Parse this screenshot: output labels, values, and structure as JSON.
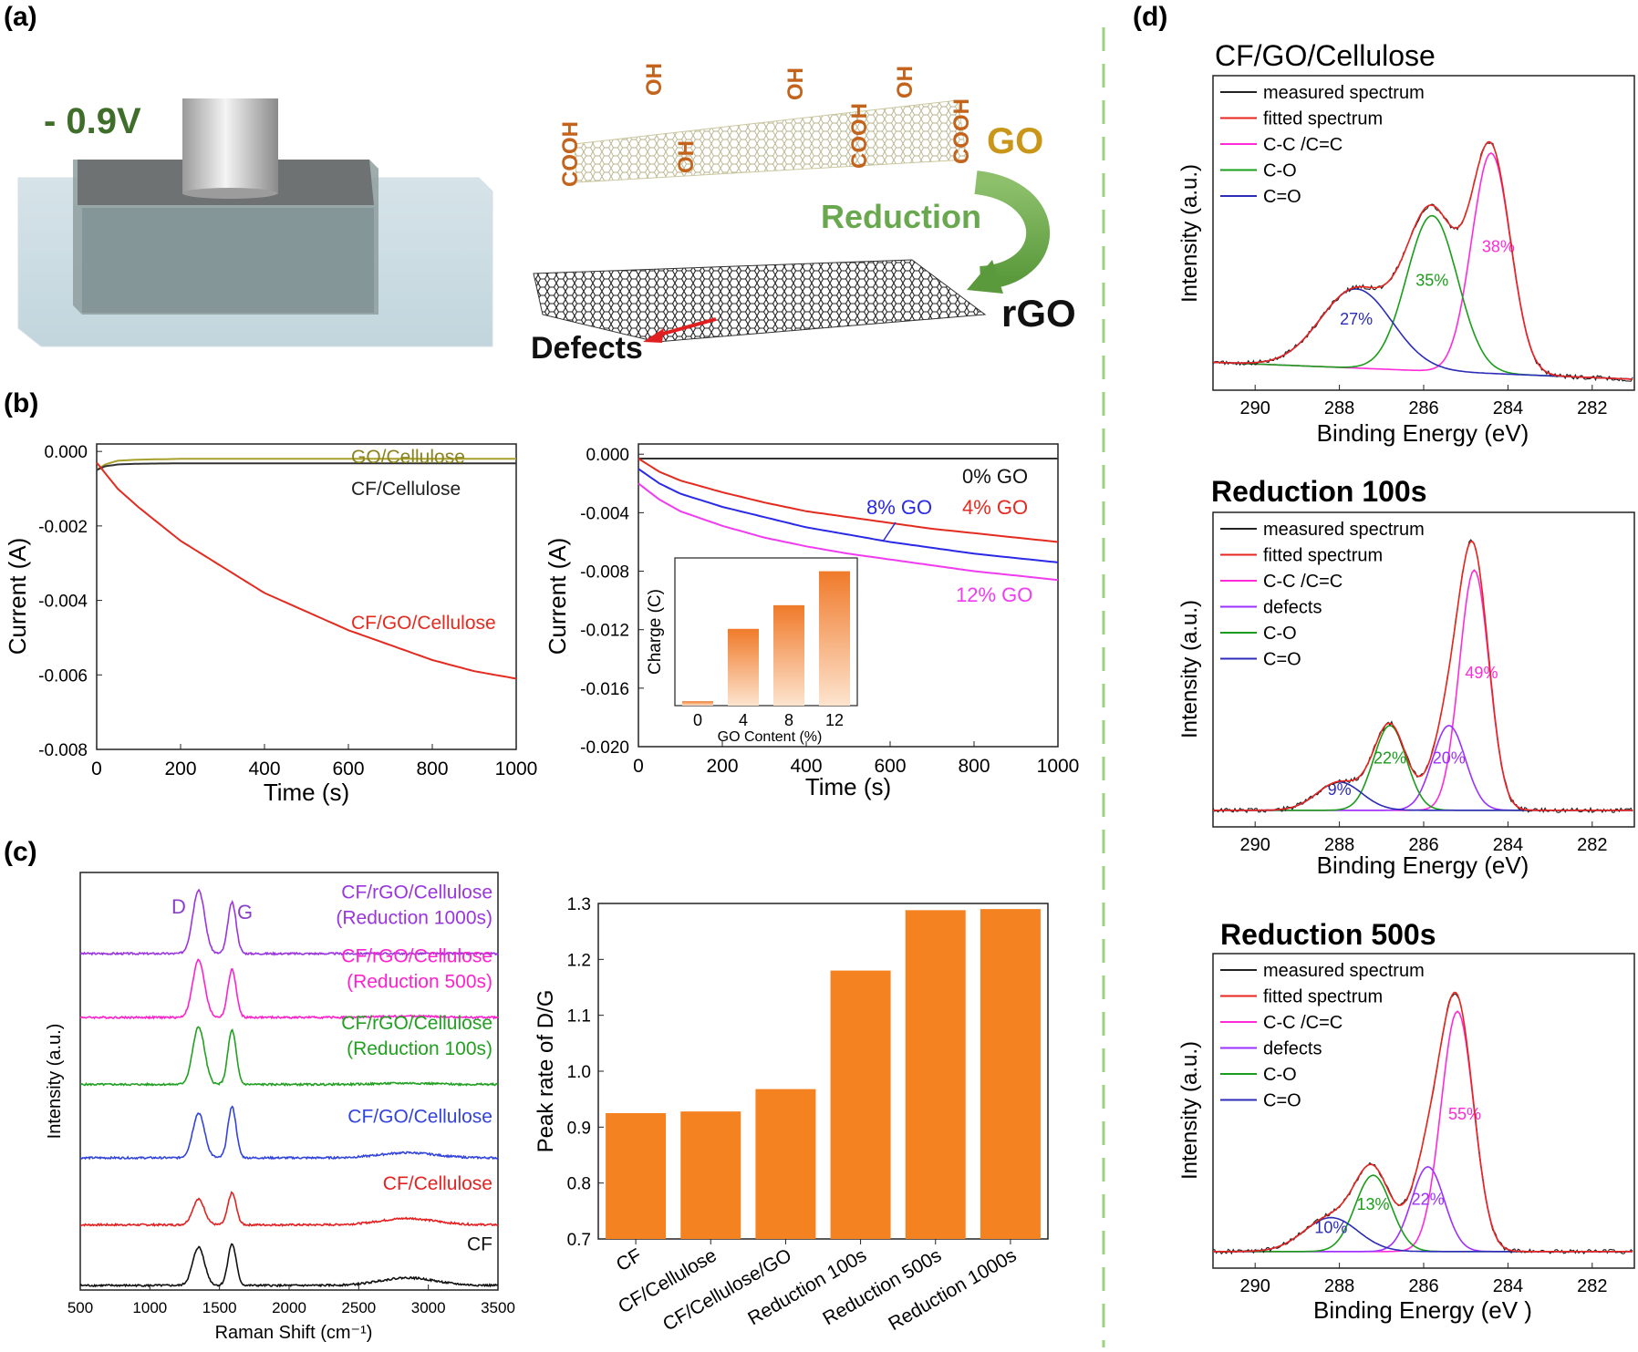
{
  "panels": {
    "a": "(a)",
    "b": "(b)",
    "c": "(c)",
    "d": "(d)"
  },
  "schematic": {
    "voltage": "- 0.9V",
    "groups": [
      "COOH",
      "OH",
      "OH",
      "OH",
      "COOH",
      "OH",
      "COOH"
    ],
    "go_label": "GO",
    "reduction_label": "Reduction",
    "rgo_label": "rGO",
    "defects_label": "Defects"
  },
  "colors": {
    "orange": "#f58220",
    "measured": "#222222",
    "fitted": "#e8251f",
    "cc": "#ff2bd8",
    "defects": "#9b30ff",
    "co": "#1a9d1a",
    "ceo": "#2c2cb8",
    "go_line": "#a7a02a",
    "black_line": "#333333",
    "red_line": "#e32b20",
    "blue_line": "#2a2ae6",
    "mag_line": "#f03cf0",
    "purple_spec": "#9a35e0",
    "mag_spec": "#ff22cc",
    "green_spec": "#22a022",
    "blue_spec": "#3344dd",
    "red_spec": "#e42222",
    "black_spec": "#111111",
    "schematic_green": "#6aa84f",
    "go_text": "#c9961a"
  },
  "chart_data": [
    {
      "id": "b1",
      "type": "line",
      "xlabel": "Time (s)",
      "ylabel": "Current (A)",
      "xlim": [
        0,
        1000
      ],
      "ylim": [
        -0.008,
        0.0002
      ],
      "xticks": [
        0,
        200,
        400,
        600,
        800,
        1000
      ],
      "yticks": [
        0.0,
        -0.002,
        -0.004,
        -0.006,
        -0.008
      ],
      "ytick_labels": [
        "0.000",
        "-0.002",
        "-0.004",
        "-0.006",
        "-0.008"
      ],
      "series": [
        {
          "name": "GO/Cellulose",
          "x": [
            0,
            20,
            50,
            100,
            200,
            400,
            600,
            800,
            1000
          ],
          "y": [
            -0.0005,
            -0.00035,
            -0.00025,
            -0.00022,
            -0.0002,
            -0.0002,
            -0.0002,
            -0.0002,
            -0.0002
          ]
        },
        {
          "name": "CF/Cellulose",
          "x": [
            0,
            20,
            50,
            100,
            200,
            400,
            600,
            800,
            1000
          ],
          "y": [
            -0.0005,
            -0.0004,
            -0.00035,
            -0.00033,
            -0.00032,
            -0.00032,
            -0.00032,
            -0.00032,
            -0.00032
          ]
        },
        {
          "name": "CF/GO/Cellulose",
          "x": [
            0,
            50,
            100,
            200,
            300,
            400,
            500,
            600,
            700,
            800,
            900,
            1000
          ],
          "y": [
            -0.0003,
            -0.001,
            -0.0015,
            -0.0024,
            -0.0031,
            -0.0038,
            -0.0043,
            -0.0048,
            -0.0052,
            -0.0056,
            -0.0059,
            -0.0061
          ]
        }
      ]
    },
    {
      "id": "b2",
      "type": "line",
      "xlabel": "Time (s)",
      "ylabel": "Current (A)",
      "xlim": [
        0,
        1000
      ],
      "ylim": [
        -0.02,
        0.0007
      ],
      "xticks": [
        0,
        200,
        400,
        600,
        800,
        1000
      ],
      "yticks": [
        0.0,
        -0.004,
        -0.008,
        -0.012,
        -0.016,
        -0.02
      ],
      "ytick_labels": [
        "0.000",
        "-0.004",
        "-0.008",
        "-0.012",
        "-0.016",
        "-0.020"
      ],
      "series": [
        {
          "name": "0% GO",
          "x": [
            0,
            1000
          ],
          "y": [
            -0.0003,
            -0.0003
          ]
        },
        {
          "name": "4% GO",
          "x": [
            0,
            50,
            100,
            200,
            300,
            400,
            500,
            600,
            700,
            800,
            900,
            1000
          ],
          "y": [
            -0.0003,
            -0.0012,
            -0.0018,
            -0.0026,
            -0.0033,
            -0.0039,
            -0.0043,
            -0.0047,
            -0.0051,
            -0.0054,
            -0.0057,
            -0.006
          ]
        },
        {
          "name": "8% GO",
          "x": [
            0,
            50,
            100,
            200,
            300,
            400,
            500,
            600,
            700,
            800,
            900,
            1000
          ],
          "y": [
            -0.001,
            -0.002,
            -0.0027,
            -0.0036,
            -0.0043,
            -0.005,
            -0.0055,
            -0.006,
            -0.0064,
            -0.0068,
            -0.0071,
            -0.0074
          ]
        },
        {
          "name": "12% GO",
          "x": [
            0,
            50,
            100,
            200,
            300,
            400,
            500,
            600,
            700,
            800,
            900,
            1000
          ],
          "y": [
            -0.002,
            -0.0031,
            -0.0039,
            -0.0049,
            -0.0057,
            -0.0063,
            -0.0068,
            -0.0072,
            -0.0076,
            -0.008,
            -0.0083,
            -0.0086
          ]
        }
      ],
      "inset": {
        "type": "bar",
        "xlabel": "GO Content (%)",
        "ylabel": "Charge (C)",
        "categories": [
          "0",
          "4",
          "8",
          "12"
        ],
        "values": [
          0.3,
          5.2,
          6.8,
          9.1
        ],
        "ylim": [
          0,
          10
        ]
      }
    },
    {
      "id": "c1",
      "type": "line",
      "xlabel": "Raman Shift (cm⁻¹)",
      "ylabel": "Intensity (a.u.)",
      "xlim": [
        500,
        3500
      ],
      "xticks": [
        500,
        1000,
        1500,
        2000,
        2500,
        3000,
        3500
      ],
      "peak_labels": [
        "D",
        "G"
      ],
      "series": [
        {
          "name": "CF/rGO/Cellulose",
          "name2": "(Reduction 1000s)",
          "offset": 5.2,
          "d": 1.0,
          "g": 0.8,
          "bump": 0.0
        },
        {
          "name": "CF/rGO/Cellulose",
          "name2": "(Reduction 500s)",
          "offset": 4.2,
          "d": 0.9,
          "g": 0.75,
          "bump": 0.02
        },
        {
          "name": "CF/rGO/Cellulose",
          "name2": "(Reduction 100s)",
          "offset": 3.15,
          "d": 0.9,
          "g": 0.85,
          "bump": 0.02
        },
        {
          "name": "CF/GO/Cellulose",
          "name2": "",
          "offset": 2.0,
          "d": 0.7,
          "g": 0.8,
          "bump": 0.08
        },
        {
          "name": "CF/Cellulose",
          "name2": "",
          "offset": 0.95,
          "d": 0.4,
          "g": 0.5,
          "bump": 0.1
        },
        {
          "name": "CF",
          "name2": "",
          "offset": 0.0,
          "d": 0.6,
          "g": 0.65,
          "bump": 0.12
        }
      ]
    },
    {
      "id": "c2",
      "type": "bar",
      "xlabel": "",
      "ylabel": "Peak rate of D/G",
      "ylim": [
        0.7,
        1.3
      ],
      "yticks": [
        0.7,
        0.8,
        0.9,
        1.0,
        1.1,
        1.2,
        1.3
      ],
      "categories": [
        "CF",
        "CF/Cellulose",
        "CF/Cellulose/GO",
        "Reduction 100s",
        "Reduction 500s",
        "Reduction 1000s"
      ],
      "values": [
        0.925,
        0.928,
        0.968,
        1.18,
        1.288,
        1.29
      ]
    },
    {
      "id": "d1",
      "type": "line",
      "title": "CF/GO/Cellulose",
      "xlabel": "Binding Energy (eV)",
      "ylabel": "Intensity (a.u.)",
      "xlim": [
        291,
        281
      ],
      "xticks": [
        290,
        288,
        286,
        284,
        282
      ],
      "legend": [
        "measured spectrum",
        "fitted spectrum",
        "C-C /C=C",
        "C-O",
        "C=O"
      ],
      "peaks": [
        {
          "name": "C-C /C=C",
          "center": 284.4,
          "height": 0.78,
          "width": 0.65,
          "pct": "38%"
        },
        {
          "name": "C-O",
          "center": 285.8,
          "height": 0.55,
          "width": 0.85,
          "pct": "35%"
        },
        {
          "name": "C=O",
          "center": 287.6,
          "height": 0.28,
          "width": 1.2,
          "pct": "27%"
        }
      ]
    },
    {
      "id": "d2",
      "type": "line",
      "title": "Reduction 100s",
      "xlabel": "Binding Energy (eV)",
      "ylabel": "Intensity (a.u.)",
      "xlim": [
        291,
        281
      ],
      "xticks": [
        290,
        288,
        286,
        284,
        282
      ],
      "legend": [
        "measured spectrum",
        "fitted spectrum",
        "C-C /C=C",
        "defects",
        "C-O",
        "C=O"
      ],
      "peaks": [
        {
          "name": "C-C /C=C",
          "center": 284.8,
          "height": 0.85,
          "width": 0.5,
          "pct": "49%"
        },
        {
          "name": "defects",
          "center": 285.4,
          "height": 0.3,
          "width": 0.55,
          "pct": "20%"
        },
        {
          "name": "C-O",
          "center": 286.8,
          "height": 0.3,
          "width": 0.55,
          "pct": "22%"
        },
        {
          "name": "C=O",
          "center": 288.0,
          "height": 0.1,
          "width": 0.75,
          "pct": "9%"
        }
      ]
    },
    {
      "id": "d3",
      "type": "line",
      "title": "Reduction 500s",
      "xlabel": "Binding Energy (eV )",
      "ylabel": "Intensity (a.u.)",
      "xlim": [
        291,
        281
      ],
      "xticks": [
        290,
        288,
        286,
        284,
        282
      ],
      "legend": [
        "measured spectrum",
        "fitted spectrum",
        "C-C /C=C",
        "defects",
        "C-O",
        "C=O"
      ],
      "peaks": [
        {
          "name": "C-C /C=C",
          "center": 285.2,
          "height": 0.85,
          "width": 0.55,
          "pct": "55%"
        },
        {
          "name": "defects",
          "center": 285.9,
          "height": 0.3,
          "width": 0.55,
          "pct": "22%"
        },
        {
          "name": "C-O",
          "center": 287.2,
          "height": 0.27,
          "width": 0.6,
          "pct": "13%"
        },
        {
          "name": "C=O",
          "center": 288.2,
          "height": 0.12,
          "width": 0.9,
          "pct": "10%"
        }
      ]
    }
  ]
}
